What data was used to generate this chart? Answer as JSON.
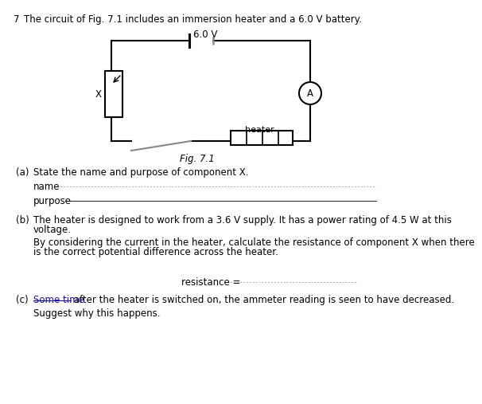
{
  "question_number": "7",
  "title_text": "The circuit of Fig. 7.1 includes an immersion heater and a 6.0 V battery.",
  "fig_label": "Fig. 7.1",
  "battery_label": "6.0 V",
  "ammeter_label": "A",
  "heater_label": "heater",
  "component_x_label": "X",
  "part_a_label": "(a)",
  "part_a_text": "State the name and purpose of component X.",
  "name_label": "name",
  "purpose_label": "purpose",
  "part_b_label": "(b)",
  "part_b_line1": "The heater is designed to work from a 3.6 V supply. It has a power rating of 4.5 W at this",
  "part_b_line2": "voltage.",
  "part_b_line3": "By considering the current in the heater, calculate the resistance of component X when there",
  "part_b_line4": "is the correct potential difference across the heater.",
  "resistance_label": "resistance =",
  "part_c_label": "(c)",
  "part_c_blue": "Some time",
  "part_c_rest": " after the heater is switched on, the ammeter reading is seen to have decreased.",
  "part_c_text2": "Suggest why this happens.",
  "bg_color": "#ffffff",
  "text_color": "#000000",
  "blue_text_color": "#1a0dab",
  "line_color": "#000000",
  "font_size": 8.5
}
